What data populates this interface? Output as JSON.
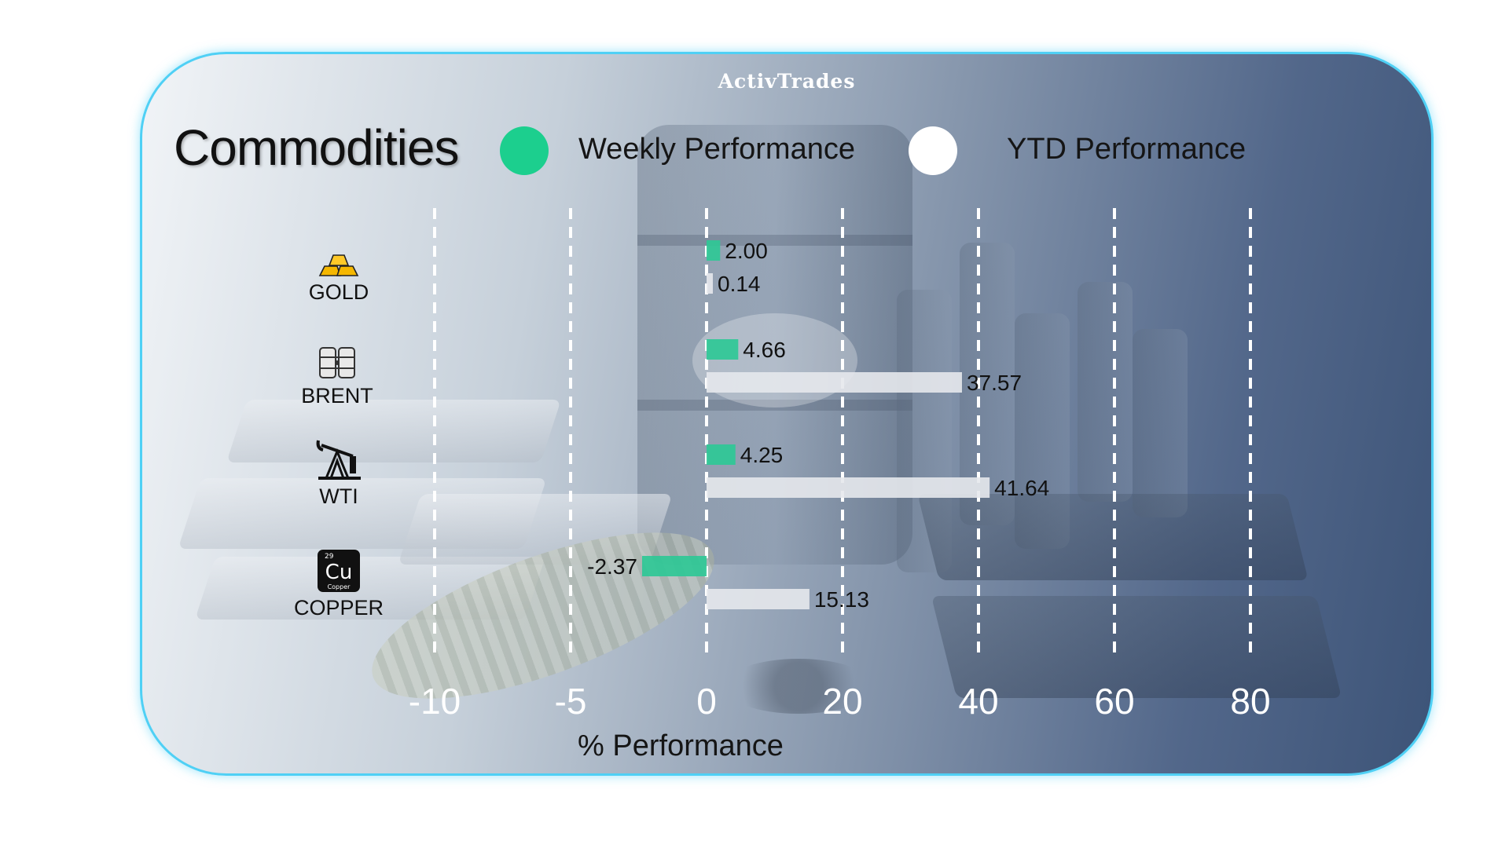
{
  "brand": "ActivTrades",
  "title": "Commodities",
  "legend": [
    {
      "label": "Weekly Performance",
      "color": "#1ccf8e"
    },
    {
      "label": "YTD Performance",
      "color": "#ffffff"
    }
  ],
  "chart_data": {
    "type": "bar",
    "orientation": "horizontal",
    "categories": [
      "GOLD",
      "BRENT",
      "WTI",
      "COPPER"
    ],
    "icons": [
      "gold-bars-icon",
      "oil-barrels-icon",
      "oil-pump-icon",
      "copper-element-icon"
    ],
    "series": [
      {
        "name": "Weekly Performance",
        "color": "#2fc896",
        "values": [
          2.0,
          4.66,
          4.25,
          -2.37
        ],
        "labels": [
          "2.00",
          "4.66",
          "4.25",
          "-2.37"
        ]
      },
      {
        "name": "YTD Performance",
        "color": "#e6e8ec",
        "values": [
          0.14,
          37.57,
          41.64,
          15.13
        ],
        "labels": [
          "0.14",
          "37.57",
          "41.64",
          "15.13"
        ]
      }
    ],
    "x_ticks": [
      "-10",
      "-5",
      "0",
      "20",
      "40",
      "60",
      "80"
    ],
    "x_tick_values": [
      -10,
      -5,
      0,
      20,
      40,
      60,
      80
    ],
    "xlabel": "% Performance",
    "grid": true,
    "legend_position": "top"
  }
}
